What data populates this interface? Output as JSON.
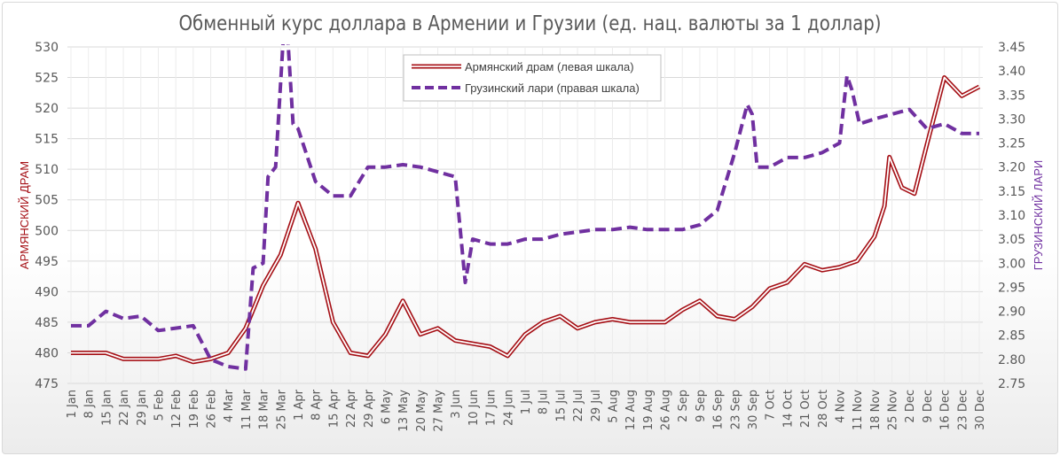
{
  "chart_data": {
    "type": "line",
    "title": "Обменный курс доллара в Армении и Грузии (ед. нац. валюты за 1 доллар)",
    "ylabel_left": "АРМЯНСКИЙ ДРАМ",
    "ylabel_right": "ГРУЗИНСКИЙ ЛАРИ",
    "ylim_left": [
      475,
      530
    ],
    "ylim_right": [
      2.75,
      3.45
    ],
    "yticks_left": [
      "475",
      "480",
      "485",
      "490",
      "495",
      "500",
      "505",
      "510",
      "515",
      "520",
      "525",
      "530"
    ],
    "yticks_right": [
      "2.75",
      "2.80",
      "2.85",
      "2.90",
      "2.95",
      "3.00",
      "3.05",
      "3.10",
      "3.15",
      "3.20",
      "3.25",
      "3.30",
      "3.35",
      "3.40",
      "3.45"
    ],
    "x_unit": "day of year (0 = 1 Jan)",
    "xlim": [
      0,
      364
    ],
    "xticks": [
      "1 Jan",
      "8 Jan",
      "15 Jan",
      "22 Jan",
      "29 Jan",
      "5 Feb",
      "12 Feb",
      "19 Feb",
      "26 Feb",
      "4 Mar",
      "11 Mar",
      "18 Mar",
      "25 Mar",
      "1 Apr",
      "8 Apr",
      "15 Apr",
      "22 Apr",
      "29 Apr",
      "6 May",
      "13 May",
      "20 May",
      "27 May",
      "3 Jun",
      "10 Jun",
      "17 Jun",
      "24 Jun",
      "1 Jul",
      "8 Jul",
      "15 Jul",
      "22 Jul",
      "29 Jul",
      "5 Aug",
      "12 Aug",
      "19 Aug",
      "26 Aug",
      "2 Sep",
      "9 Sep",
      "16 Sep",
      "23 Sep",
      "30 Sep",
      "7 Oct",
      "14 Oct",
      "21 Oct",
      "28 Oct",
      "4 Nov",
      "11 Nov",
      "18 Nov",
      "25 Nov",
      "2 Dec",
      "9 Dec",
      "16 Dec",
      "23 Dec",
      "30 Dec"
    ],
    "grid": true,
    "legend_position": "top-center",
    "series": [
      {
        "name": "Армянский драм (левая шкала)",
        "axis": "left",
        "color": "#a50f15",
        "style": "double",
        "points": [
          [
            0,
            480
          ],
          [
            7,
            480
          ],
          [
            14,
            480
          ],
          [
            21,
            479
          ],
          [
            28,
            479
          ],
          [
            35,
            479
          ],
          [
            42,
            479.5
          ],
          [
            49,
            478.5
          ],
          [
            56,
            479
          ],
          [
            63,
            480
          ],
          [
            70,
            484
          ],
          [
            77,
            491
          ],
          [
            84,
            496
          ],
          [
            91,
            504.5
          ],
          [
            98,
            497
          ],
          [
            105,
            485
          ],
          [
            112,
            480
          ],
          [
            119,
            479.5
          ],
          [
            126,
            483
          ],
          [
            133,
            488.5
          ],
          [
            140,
            483
          ],
          [
            147,
            484
          ],
          [
            154,
            482
          ],
          [
            161,
            481.5
          ],
          [
            168,
            481
          ],
          [
            175,
            479.5
          ],
          [
            182,
            483
          ],
          [
            189,
            485
          ],
          [
            196,
            486
          ],
          [
            203,
            484
          ],
          [
            210,
            485
          ],
          [
            217,
            485.5
          ],
          [
            224,
            485
          ],
          [
            231,
            485
          ],
          [
            238,
            485
          ],
          [
            245,
            487
          ],
          [
            252,
            488.5
          ],
          [
            259,
            486
          ],
          [
            266,
            485.5
          ],
          [
            273,
            487.5
          ],
          [
            280,
            490.5
          ],
          [
            287,
            491.5
          ],
          [
            294,
            494.5
          ],
          [
            301,
            493.5
          ],
          [
            308,
            494
          ],
          [
            315,
            495
          ],
          [
            322,
            499
          ],
          [
            326,
            504
          ],
          [
            328,
            512
          ],
          [
            333,
            507
          ],
          [
            338,
            506
          ],
          [
            343,
            514
          ],
          [
            350,
            525
          ],
          [
            357,
            522
          ],
          [
            364,
            523.5
          ]
        ]
      },
      {
        "name": "Грузинский лари (правая шкала)",
        "axis": "right",
        "color": "#7030a0",
        "style": "dashed",
        "points": [
          [
            0,
            2.87
          ],
          [
            7,
            2.87
          ],
          [
            14,
            2.9
          ],
          [
            21,
            2.885
          ],
          [
            28,
            2.89
          ],
          [
            35,
            2.86
          ],
          [
            42,
            2.865
          ],
          [
            49,
            2.87
          ],
          [
            53,
            2.83
          ],
          [
            56,
            2.8
          ],
          [
            63,
            2.785
          ],
          [
            70,
            2.78
          ],
          [
            73,
            2.99
          ],
          [
            77,
            3.0
          ],
          [
            79,
            3.18
          ],
          [
            82,
            3.2
          ],
          [
            85,
            3.46
          ],
          [
            87,
            3.46
          ],
          [
            89,
            3.29
          ],
          [
            91,
            3.28
          ],
          [
            98,
            3.17
          ],
          [
            105,
            3.14
          ],
          [
            112,
            3.14
          ],
          [
            119,
            3.2
          ],
          [
            126,
            3.2
          ],
          [
            133,
            3.205
          ],
          [
            140,
            3.2
          ],
          [
            147,
            3.19
          ],
          [
            154,
            3.18
          ],
          [
            158,
            2.96
          ],
          [
            161,
            3.05
          ],
          [
            168,
            3.04
          ],
          [
            175,
            3.04
          ],
          [
            182,
            3.05
          ],
          [
            189,
            3.05
          ],
          [
            196,
            3.06
          ],
          [
            203,
            3.065
          ],
          [
            210,
            3.07
          ],
          [
            217,
            3.07
          ],
          [
            224,
            3.075
          ],
          [
            231,
            3.07
          ],
          [
            238,
            3.07
          ],
          [
            245,
            3.07
          ],
          [
            252,
            3.08
          ],
          [
            259,
            3.11
          ],
          [
            266,
            3.23
          ],
          [
            271,
            3.33
          ],
          [
            273,
            3.31
          ],
          [
            275,
            3.2
          ],
          [
            280,
            3.2
          ],
          [
            287,
            3.22
          ],
          [
            294,
            3.22
          ],
          [
            301,
            3.23
          ],
          [
            308,
            3.25
          ],
          [
            311,
            3.39
          ],
          [
            313,
            3.36
          ],
          [
            316,
            3.29
          ],
          [
            322,
            3.3
          ],
          [
            329,
            3.31
          ],
          [
            336,
            3.32
          ],
          [
            343,
            3.28
          ],
          [
            350,
            3.29
          ],
          [
            357,
            3.27
          ],
          [
            364,
            3.27
          ]
        ]
      }
    ]
  }
}
